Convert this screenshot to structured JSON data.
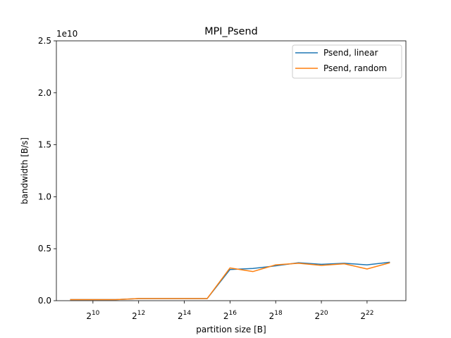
{
  "chart_data": {
    "type": "line",
    "title": "MPI_Psend",
    "xlabel": "partition size [B]",
    "ylabel": "bandwidth [B/s]",
    "x_scale": "log2",
    "x_tick_exponents": [
      10,
      12,
      14,
      16,
      18,
      20,
      22
    ],
    "x_tick_base": "2",
    "xlim_log2": [
      8.4,
      23.7
    ],
    "ylim": [
      0,
      25000000000
    ],
    "y_scale_label": "1e10",
    "y_ticks": [
      0.0,
      0.5,
      1.0,
      1.5,
      2.0,
      2.5
    ],
    "y_tick_labels": [
      "0.0",
      "0.5",
      "1.0",
      "1.5",
      "2.0",
      "2.5"
    ],
    "grid": false,
    "legend_position": "top-right",
    "x_log2": [
      9,
      10,
      11,
      12,
      13,
      14,
      15,
      16,
      17,
      18,
      19,
      20,
      21,
      22,
      23
    ],
    "series": [
      {
        "name": "Psend, linear",
        "color": "#1f77b4",
        "values": [
          100000000,
          100000000,
          100000000,
          200000000,
          200000000,
          200000000,
          200000000,
          3000000000,
          3100000000,
          3350000000,
          3650000000,
          3500000000,
          3600000000,
          3450000000,
          3700000000
        ]
      },
      {
        "name": "Psend, random",
        "color": "#ff7f0e",
        "values": [
          100000000,
          100000000,
          100000000,
          200000000,
          200000000,
          200000000,
          200000000,
          3150000000,
          2800000000,
          3450000000,
          3600000000,
          3400000000,
          3550000000,
          3050000000,
          3650000000
        ]
      }
    ]
  }
}
